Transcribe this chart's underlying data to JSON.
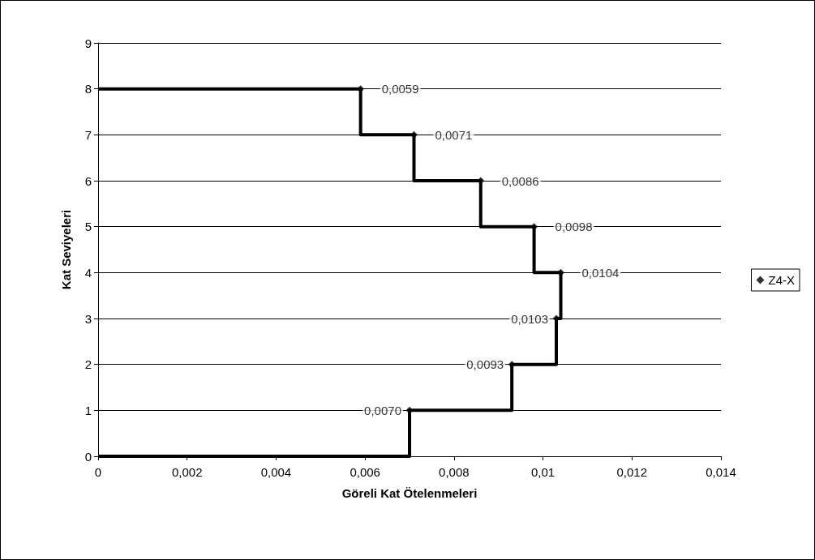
{
  "chart_data": {
    "type": "scatter",
    "xlabel": "Göreli Kat Ötelenmeleri",
    "ylabel": "Kat Seviyeleri",
    "series": [
      {
        "type": "step",
        "color": "#000000",
        "marker": "none",
        "x": [
          0,
          0.0059,
          0.0071,
          0.0086,
          0.0098,
          0.0104,
          0.0103,
          0.0093,
          0.007,
          0
        ],
        "values": [
          8,
          8,
          7,
          6,
          5,
          4,
          3,
          2,
          1,
          0
        ]
      },
      {
        "name": "Z4-X",
        "color": "#000000",
        "marker": "diamond",
        "x": [
          0.0059,
          0.0071,
          0.0086,
          0.0098,
          0.0104,
          0.0103,
          0.0093,
          0.007
        ],
        "values": [
          8,
          7,
          6,
          5,
          4,
          3,
          2,
          1
        ]
      }
    ],
    "annotations": [
      {
        "text": "0,0059",
        "x": 0.0059,
        "y": 8
      },
      {
        "text": "0,0071",
        "x": 0.0071,
        "y": 7
      },
      {
        "text": "0,0086",
        "x": 0.0086,
        "y": 6
      },
      {
        "text": "0,0098",
        "x": 0.0098,
        "y": 5
      },
      {
        "text": "0,0104",
        "x": 0.0104,
        "y": 4
      },
      {
        "text": "0,0103",
        "x": 0.0103,
        "y": 3
      },
      {
        "text": "0,0093",
        "x": 0.0093,
        "y": 2
      },
      {
        "text": "0,0070",
        "x": 0.007,
        "y": 1
      }
    ],
    "xlim": [
      0,
      0.014
    ],
    "xticks": [
      0,
      {
        "value": 0.002,
        "label": "0,002"
      },
      {
        "value": 0.004,
        "label": "0,004"
      },
      {
        "value": 0.006,
        "label": "0,006"
      },
      {
        "value": 0.008,
        "label": "0,008"
      },
      {
        "value": 0.01,
        "label": "0,01"
      },
      {
        "value": 0.012,
        "label": "0,012"
      },
      {
        "value": 0.014,
        "label": "0,014"
      }
    ],
    "ylim": [
      0,
      9
    ],
    "yticks": [
      0,
      1,
      2,
      3,
      4,
      5,
      6,
      7,
      8,
      9
    ],
    "grid": "y",
    "legend": "right"
  }
}
